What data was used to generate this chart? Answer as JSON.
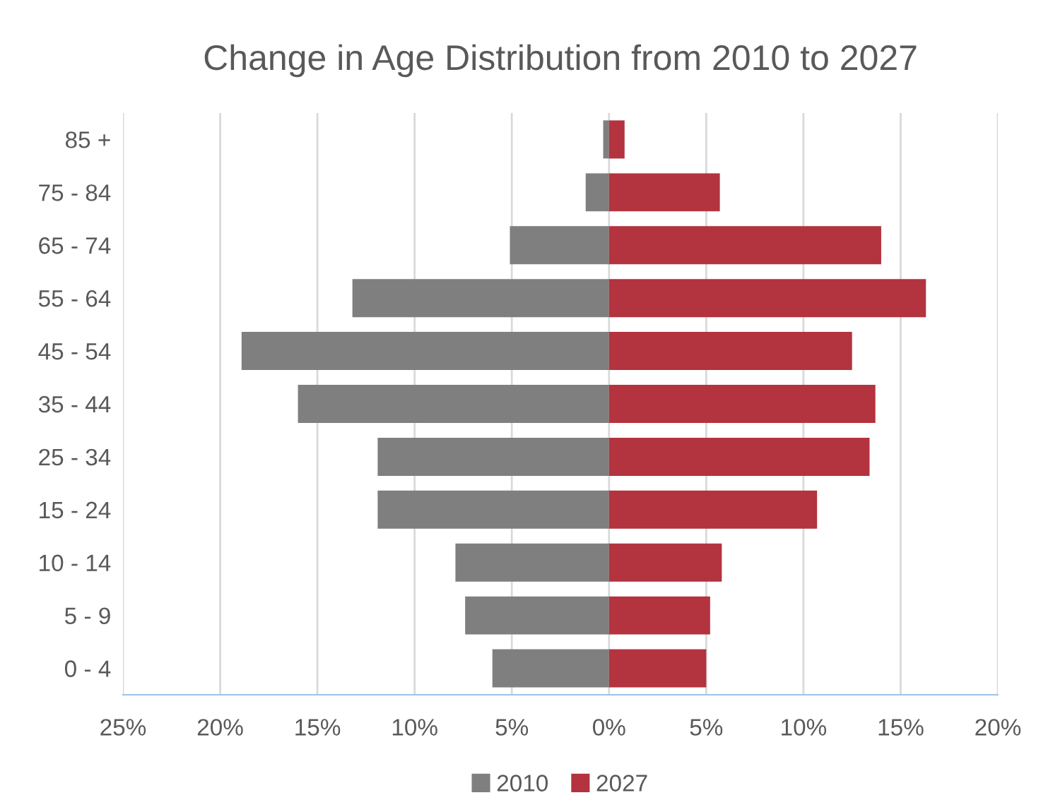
{
  "chart_data": {
    "type": "bar",
    "orientation": "horizontal",
    "stacked": true,
    "title": "Change in Age Distribution from 2010 to 2027",
    "categories": [
      "85 +",
      "75 - 84",
      "65 - 74",
      "55 - 64",
      "45 - 54",
      "35 - 44",
      "25 - 34",
      "15 - 24",
      "10 - 14",
      "5 - 9",
      "0 - 4"
    ],
    "series": [
      {
        "name": "2010",
        "color": "#7f7f7f",
        "values": [
          -0.3,
          -1.2,
          -5.1,
          -13.2,
          -18.9,
          -16.0,
          -11.9,
          -11.9,
          -7.9,
          -7.4,
          -6.0
        ]
      },
      {
        "name": "2027",
        "color": "#b3333f",
        "values": [
          0.8,
          5.7,
          14.0,
          16.3,
          12.5,
          13.7,
          13.4,
          10.7,
          5.8,
          5.2,
          5.0
        ]
      }
    ],
    "xlim": [
      -25,
      20
    ],
    "xticks": [
      {
        "value": -25,
        "label": "25%"
      },
      {
        "value": -20,
        "label": "20%"
      },
      {
        "value": -15,
        "label": "15%"
      },
      {
        "value": -10,
        "label": "10%"
      },
      {
        "value": -5,
        "label": "5%"
      },
      {
        "value": 0,
        "label": "0%"
      },
      {
        "value": 5,
        "label": "5%"
      },
      {
        "value": 10,
        "label": "10%"
      },
      {
        "value": 15,
        "label": "15%"
      },
      {
        "value": 20,
        "label": "20%"
      }
    ],
    "grid": "x",
    "legend": "bottom"
  }
}
